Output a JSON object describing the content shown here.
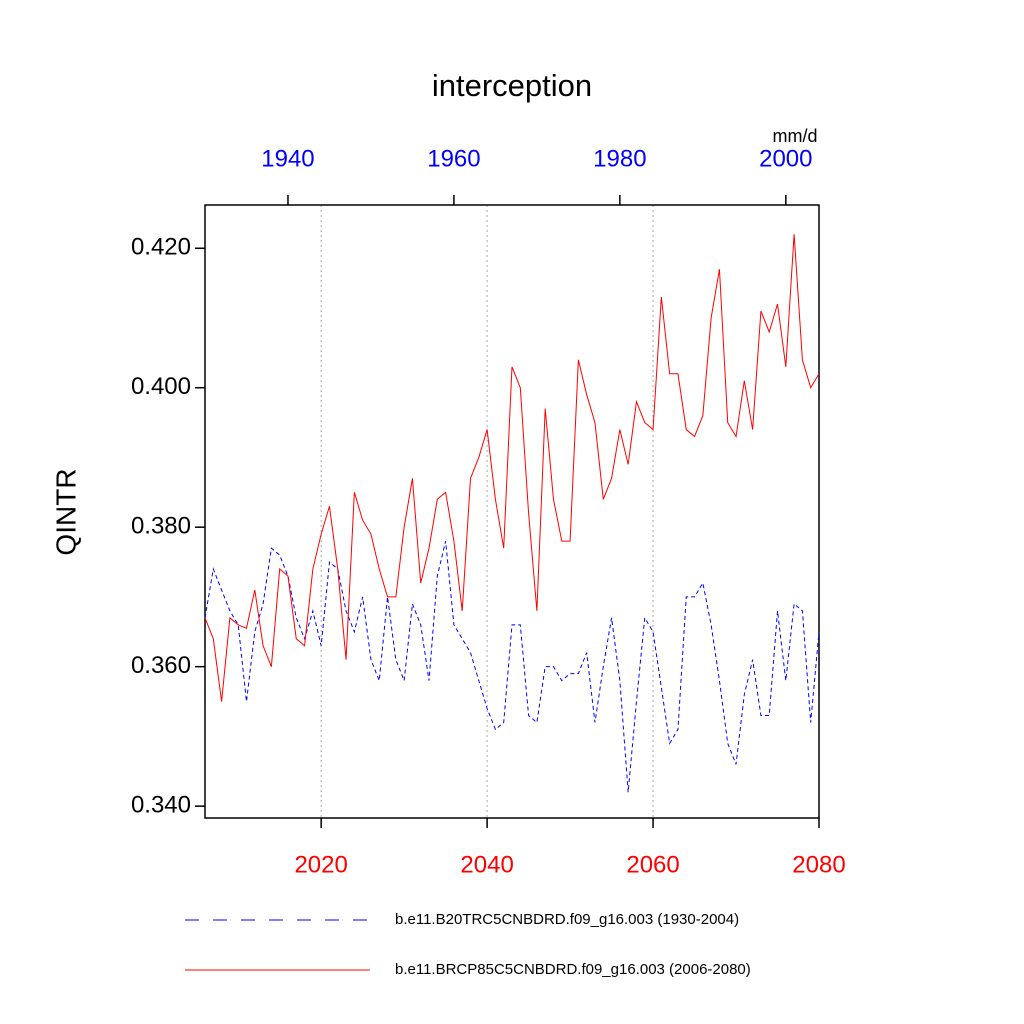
{
  "chart_data": {
    "type": "line",
    "title": "interception",
    "units": "mm/d",
    "y_label": "QINTR",
    "ylim": [
      0.3383,
      0.4262
    ],
    "yticks": [
      {
        "value": 0.34,
        "label": "0.340"
      },
      {
        "value": 0.36,
        "label": "0.360"
      },
      {
        "value": 0.38,
        "label": "0.380"
      },
      {
        "value": 0.4,
        "label": "0.400"
      },
      {
        "value": 0.42,
        "label": "0.420"
      }
    ],
    "xlim": [
      2006,
      2080
    ],
    "xticks": [
      2020,
      2040,
      2060,
      2080
    ],
    "xtick_color": "#ff0000",
    "x2lim": [
      1930,
      2004
    ],
    "x2ticks": [
      1940,
      1960,
      1980,
      2000
    ],
    "x2tick_color": "#0000ff",
    "grid": true,
    "series": [
      {
        "name": "b.e11.B20TRC5CNBDRD.f09_g16.003 (1930-2004)",
        "color": "#0000ff",
        "dashed": true,
        "axis": "x2",
        "x": [
          1930,
          1931,
          1932,
          1933,
          1934,
          1935,
          1936,
          1937,
          1938,
          1939,
          1940,
          1941,
          1942,
          1943,
          1944,
          1945,
          1946,
          1947,
          1948,
          1949,
          1950,
          1951,
          1952,
          1953,
          1954,
          1955,
          1956,
          1957,
          1958,
          1959,
          1960,
          1961,
          1962,
          1963,
          1964,
          1965,
          1966,
          1967,
          1968,
          1969,
          1970,
          1971,
          1972,
          1973,
          1974,
          1975,
          1976,
          1977,
          1978,
          1979,
          1980,
          1981,
          1982,
          1983,
          1984,
          1985,
          1986,
          1987,
          1988,
          1989,
          1990,
          1991,
          1992,
          1993,
          1994,
          1995,
          1996,
          1997,
          1998,
          1999,
          2000,
          2001,
          2002,
          2003,
          2004
        ],
        "values": [
          0.367,
          0.374,
          0.371,
          0.368,
          0.366,
          0.355,
          0.365,
          0.369,
          0.377,
          0.376,
          0.373,
          0.367,
          0.364,
          0.368,
          0.363,
          0.375,
          0.374,
          0.368,
          0.365,
          0.37,
          0.361,
          0.358,
          0.37,
          0.361,
          0.358,
          0.369,
          0.366,
          0.358,
          0.373,
          0.378,
          0.366,
          0.364,
          0.362,
          0.358,
          0.354,
          0.351,
          0.352,
          0.366,
          0.366,
          0.353,
          0.352,
          0.36,
          0.36,
          0.358,
          0.359,
          0.359,
          0.362,
          0.352,
          0.36,
          0.367,
          0.358,
          0.342,
          0.355,
          0.367,
          0.365,
          0.357,
          0.349,
          0.351,
          0.37,
          0.37,
          0.372,
          0.366,
          0.358,
          0.349,
          0.346,
          0.356,
          0.361,
          0.353,
          0.353,
          0.368,
          0.358,
          0.369,
          0.368,
          0.352,
          0.365
        ]
      },
      {
        "name": "b.e11.BRCP85C5CNBDRD.f09_g16.003 (2006-2080)",
        "color": "#ff0000",
        "dashed": false,
        "x": [
          2006,
          2007,
          2008,
          2009,
          2010,
          2011,
          2012,
          2013,
          2014,
          2015,
          2016,
          2017,
          2018,
          2019,
          2020,
          2021,
          2022,
          2023,
          2024,
          2025,
          2026,
          2027,
          2028,
          2029,
          2030,
          2031,
          2032,
          2033,
          2034,
          2035,
          2036,
          2037,
          2038,
          2039,
          2040,
          2041,
          2042,
          2043,
          2044,
          2045,
          2046,
          2047,
          2048,
          2049,
          2050,
          2051,
          2052,
          2053,
          2054,
          2055,
          2056,
          2057,
          2058,
          2059,
          2060,
          2061,
          2062,
          2063,
          2064,
          2065,
          2066,
          2067,
          2068,
          2069,
          2070,
          2071,
          2072,
          2073,
          2074,
          2075,
          2076,
          2077,
          2078,
          2079,
          2080
        ],
        "values": [
          0.367,
          0.364,
          0.355,
          0.367,
          0.366,
          0.3655,
          0.371,
          0.363,
          0.36,
          0.374,
          0.373,
          0.364,
          0.363,
          0.374,
          0.379,
          0.383,
          0.374,
          0.361,
          0.385,
          0.381,
          0.379,
          0.374,
          0.37,
          0.37,
          0.38,
          0.387,
          0.372,
          0.377,
          0.384,
          0.385,
          0.378,
          0.368,
          0.387,
          0.39,
          0.394,
          0.384,
          0.377,
          0.403,
          0.4,
          0.382,
          0.368,
          0.397,
          0.384,
          0.378,
          0.378,
          0.404,
          0.399,
          0.395,
          0.384,
          0.387,
          0.394,
          0.389,
          0.398,
          0.395,
          0.394,
          0.413,
          0.402,
          0.402,
          0.394,
          0.393,
          0.396,
          0.41,
          0.417,
          0.395,
          0.393,
          0.401,
          0.394,
          0.411,
          0.408,
          0.412,
          0.403,
          0.422,
          0.404,
          0.4,
          0.402
        ]
      }
    ]
  }
}
